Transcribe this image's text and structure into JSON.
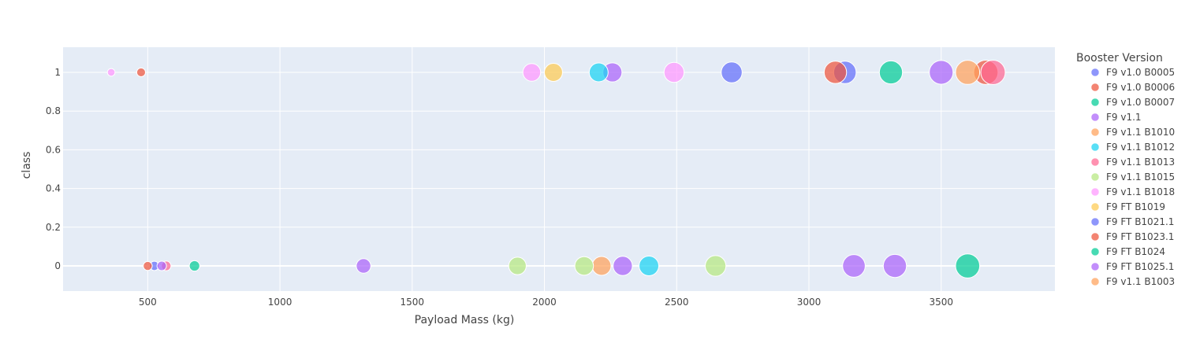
{
  "chart_data": {
    "type": "scatter",
    "xlabel": "Payload Mass (kg)",
    "ylabel": "class",
    "xlim": [
      180,
      3930
    ],
    "ylim": [
      -0.13,
      1.13
    ],
    "x_ticks": [
      500,
      1000,
      1500,
      2000,
      2500,
      3000,
      3500
    ],
    "y_ticks": [
      0,
      0.2,
      0.4,
      0.6,
      0.8,
      1
    ],
    "grid": true,
    "plot_background": "#E5ECF6",
    "legend": {
      "title": "Booster Version",
      "position": "right"
    },
    "marker_size_encodes": "Payload Mass (kg)",
    "series": [
      {
        "name": "F9 v1.0  B0005",
        "color": "#636EFA",
        "points": [
          {
            "x": 525,
            "y": 0
          }
        ]
      },
      {
        "name": "F9 v1.0  B0006",
        "color": "#EF553B",
        "points": [
          {
            "x": 500,
            "y": 0
          }
        ]
      },
      {
        "name": "F9 v1.0  B0007",
        "color": "#00CC96",
        "points": [
          {
            "x": 677,
            "y": 0
          }
        ]
      },
      {
        "name": "F9 v1.1",
        "color": "#AB63FA",
        "points": [
          {
            "x": 1316,
            "y": 0
          },
          {
            "x": 2296,
            "y": 0
          },
          {
            "x": 3170,
            "y": 0
          },
          {
            "x": 3325,
            "y": 0
          },
          {
            "x": 2257,
            "y": 1
          },
          {
            "x": 3500,
            "y": 1
          }
        ]
      },
      {
        "name": "F9 v1.1 B1010",
        "color": "#FFA15A",
        "points": [
          {
            "x": 2216,
            "y": 0
          }
        ]
      },
      {
        "name": "F9 v1.1 B1012",
        "color": "#19D3F3",
        "points": [
          {
            "x": 2395,
            "y": 0
          },
          {
            "x": 2205,
            "y": 1
          }
        ]
      },
      {
        "name": "F9 v1.1 B1013",
        "color": "#FF6692",
        "points": [
          {
            "x": 570,
            "y": 0
          }
        ]
      },
      {
        "name": "F9 v1.1 B1015",
        "color": "#B6E880",
        "points": [
          {
            "x": 1898,
            "y": 0
          },
          {
            "x": 2150,
            "y": 0
          },
          {
            "x": 2647,
            "y": 0
          }
        ]
      },
      {
        "name": "F9 v1.1 B1018",
        "color": "#FF97FF",
        "points": [
          {
            "x": 362,
            "y": 1
          },
          {
            "x": 1952,
            "y": 1
          },
          {
            "x": 2490,
            "y": 1
          }
        ]
      },
      {
        "name": "F9 FT B1019",
        "color": "#FECB52",
        "points": [
          {
            "x": 2034,
            "y": 1
          }
        ]
      },
      {
        "name": "F9 FT B1021.1",
        "color": "#636EFA",
        "points": [
          {
            "x": 2708,
            "y": 1
          },
          {
            "x": 3136,
            "y": 1
          }
        ]
      },
      {
        "name": "F9 FT B1023.1",
        "color": "#EF553B",
        "points": [
          {
            "x": 475,
            "y": 1
          },
          {
            "x": 3100,
            "y": 1
          },
          {
            "x": 3669,
            "y": 1
          }
        ]
      },
      {
        "name": "F9 FT B1024",
        "color": "#00CC96",
        "points": [
          {
            "x": 3600,
            "y": 0
          },
          {
            "x": 3310,
            "y": 1
          }
        ]
      },
      {
        "name": "F9 FT B1025.1",
        "color": "#AB63FA",
        "points": [
          {
            "x": 553,
            "y": 0
          }
        ]
      },
      {
        "name": "F9 v1.1  B1003",
        "color": "#FFA15A",
        "points": [
          {
            "x": 3600,
            "y": 1
          }
        ]
      },
      {
        "name": "",
        "color": "#FF6692",
        "points": [
          {
            "x": 3696,
            "y": 1
          }
        ]
      }
    ]
  }
}
